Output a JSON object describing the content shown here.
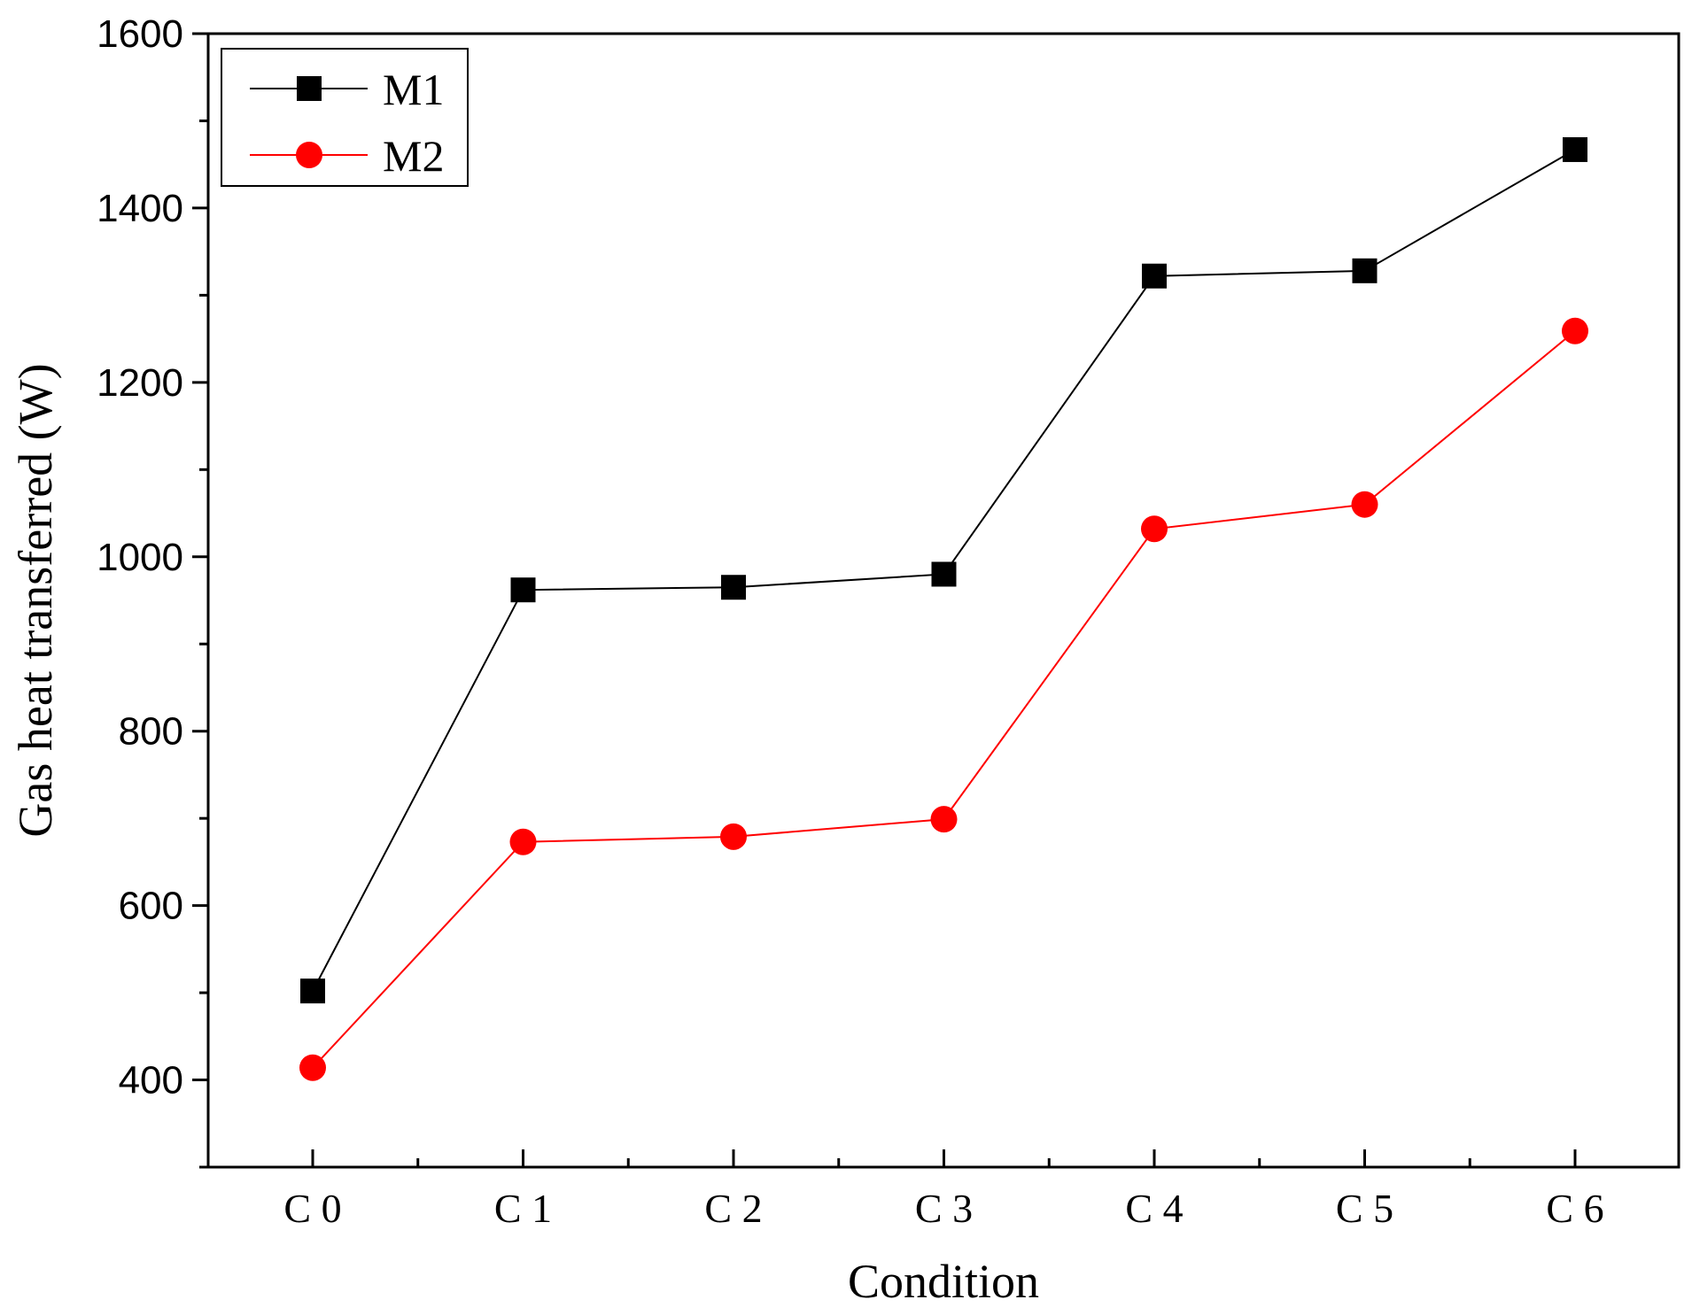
{
  "chart_data": {
    "type": "line",
    "title": "",
    "xlabel": "Condition",
    "ylabel": "Gas heat transferred (W)",
    "categories": [
      "C 0",
      "C 1",
      "C 2",
      "C 3",
      "C 4",
      "C 5",
      "C 6"
    ],
    "ylim": [
      300,
      1600
    ],
    "yticks": [
      400,
      600,
      800,
      1000,
      1200,
      1400,
      1600
    ],
    "legend_position": "top-left",
    "series": [
      {
        "name": "M1",
        "marker": "square",
        "color": "#000000",
        "values": [
          502,
          962,
          965,
          980,
          1322,
          1328,
          1467
        ]
      },
      {
        "name": "M2",
        "marker": "circle",
        "color": "#ff0000",
        "values": [
          414,
          673,
          679,
          699,
          1032,
          1060,
          1259
        ]
      }
    ]
  }
}
